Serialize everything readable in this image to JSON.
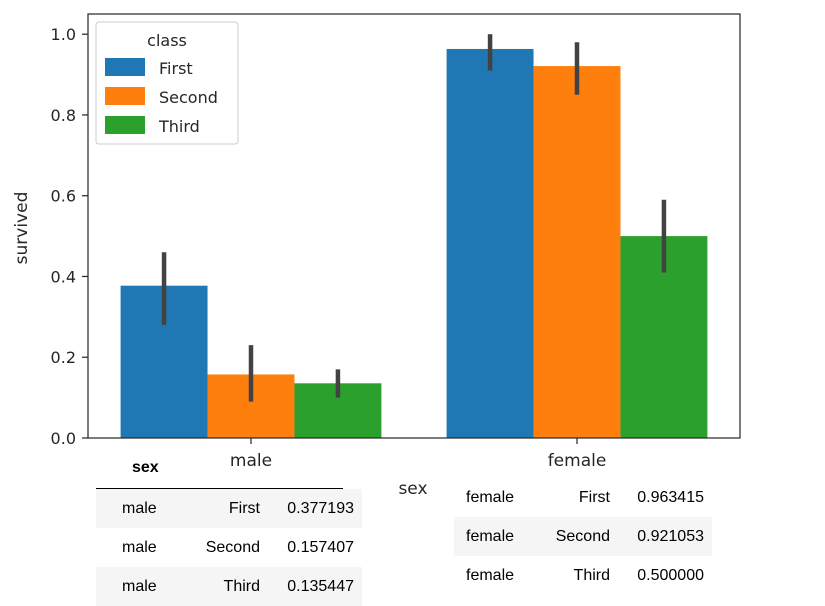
{
  "chart_data": {
    "type": "bar",
    "categories": [
      "male",
      "female"
    ],
    "xlabel": "sex",
    "ylabel": "survived",
    "ylim": [
      0,
      1.05
    ],
    "yticks": [
      "0.0",
      "0.2",
      "0.4",
      "0.6",
      "0.8",
      "1.0"
    ],
    "legend": {
      "title": "class",
      "placement": "top-left"
    },
    "series": [
      {
        "name": "First",
        "color": "#1f77b4",
        "values": [
          0.377193,
          0.963415
        ],
        "ci": [
          [
            0.28,
            0.46
          ],
          [
            0.91,
            1.0
          ]
        ]
      },
      {
        "name": "Second",
        "color": "#ff7f0e",
        "values": [
          0.157407,
          0.921053
        ],
        "ci": [
          [
            0.09,
            0.23
          ],
          [
            0.85,
            0.98
          ]
        ]
      },
      {
        "name": "Third",
        "color": "#2ca02c",
        "values": [
          0.135447,
          0.5
        ],
        "ci": [
          [
            0.1,
            0.17
          ],
          [
            0.41,
            0.59
          ]
        ]
      }
    ]
  },
  "table": {
    "header": "sex",
    "male_rows": [
      {
        "sex": "male",
        "class": "First",
        "survived": "0.377193"
      },
      {
        "sex": "male",
        "class": "Second",
        "survived": "0.157407"
      },
      {
        "sex": "male",
        "class": "Third",
        "survived": "0.135447"
      }
    ],
    "female_rows": [
      {
        "sex": "female",
        "class": "First",
        "survived": "0.963415"
      },
      {
        "sex": "female",
        "class": "Second",
        "survived": "0.921053"
      },
      {
        "sex": "female",
        "class": "Third",
        "survived": "0.500000"
      }
    ]
  }
}
